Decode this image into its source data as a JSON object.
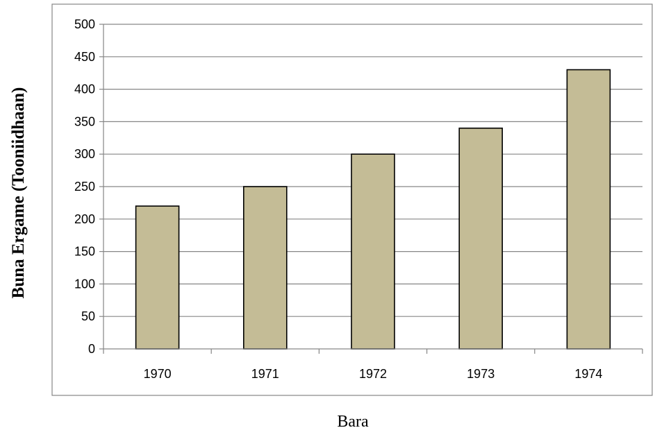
{
  "chart_data": {
    "type": "bar",
    "categories": [
      "1970",
      "1971",
      "1972",
      "1973",
      "1974"
    ],
    "values": [
      220,
      250,
      300,
      340,
      430
    ],
    "title": "",
    "xlabel": "Bara",
    "ylabel": "Buna Ergame (Tooniidhaan)",
    "ylim": [
      0,
      500
    ],
    "yticks": [
      "0",
      "50",
      "100",
      "150",
      "200",
      "250",
      "300",
      "350",
      "400",
      "450",
      "500"
    ],
    "grid": true,
    "legend": "none",
    "bar_color": "#c4bc96",
    "bar_edge_color": "#000000",
    "grid_color": "#868686"
  }
}
